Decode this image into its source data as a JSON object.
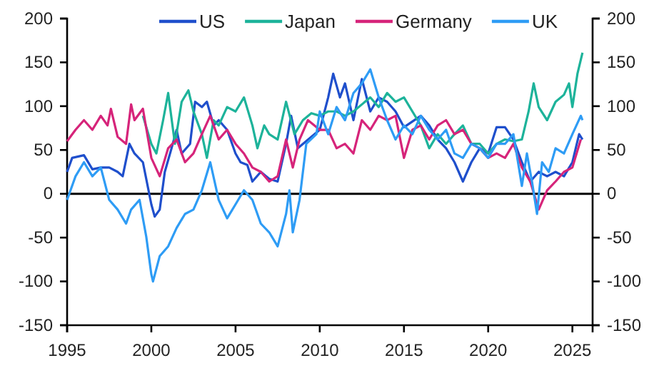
{
  "chart_data": {
    "type": "line",
    "xlim": [
      1995,
      2026.2
    ],
    "xticks": [
      1995,
      2000,
      2005,
      2010,
      2015,
      2020,
      2025
    ],
    "ylim": [
      -150,
      200
    ],
    "yticks": [
      -150,
      -100,
      -50,
      0,
      50,
      100,
      150,
      200
    ],
    "y2lim": [
      -150,
      200
    ],
    "y2ticks": [
      -150,
      -100,
      -50,
      0,
      50,
      100,
      150,
      200
    ],
    "legend": "top",
    "grid": false,
    "line_style": "solid",
    "marker": "none",
    "ref_lines": [
      {
        "axis": "y",
        "value": 0,
        "color": "#000000"
      }
    ],
    "series": [
      {
        "name": "US",
        "color": "#1f4fcc",
        "x": [
          1995,
          1995.3,
          1996,
          1996.5,
          1997,
          1997.5,
          1998,
          1998.3,
          1998.7,
          1999,
          1999.5,
          2000,
          2000.2,
          2000.5,
          2000.8,
          2001.2,
          2001.5,
          2001.8,
          2002.3,
          2002.6,
          2003,
          2003.3,
          2003.7,
          2004,
          2004.5,
          2005,
          2005.3,
          2005.7,
          2006,
          2006.5,
          2007,
          2007.5,
          2008,
          2008.3,
          2008.7,
          2010,
          2010.5,
          2010.8,
          2011.2,
          2011.5,
          2012,
          2012.5,
          2013,
          2013.5,
          2014,
          2014.5,
          2015,
          2016,
          2016.5,
          2017,
          2017.5,
          2018,
          2018.5,
          2019,
          2019.5,
          2020,
          2020.5,
          2021,
          2021.5,
          2022,
          2022.5,
          2023,
          2023.5,
          2024,
          2024.5,
          2025,
          2025.4,
          2025.6
        ],
        "values": [
          25,
          41,
          44,
          28,
          30,
          30,
          25,
          20,
          57,
          46,
          36,
          -12,
          -26,
          -18,
          25,
          52,
          73,
          46,
          57,
          105,
          99,
          105,
          78,
          84,
          73,
          46,
          36,
          33,
          14,
          25,
          17,
          14,
          57,
          89,
          52,
          73,
          110,
          137,
          110,
          126,
          84,
          131,
          94,
          110,
          105,
          94,
          76,
          89,
          78,
          62,
          52,
          36,
          14,
          36,
          52,
          46,
          76,
          76,
          62,
          36,
          14,
          25,
          20,
          25,
          20,
          36,
          68,
          62
        ]
      },
      {
        "name": "Japan",
        "color": "#1db39a",
        "x": [
          1999.5,
          2000,
          2000.3,
          2000.7,
          2001,
          2001.4,
          2001.8,
          2002.2,
          2002.5,
          2003,
          2003.3,
          2003.7,
          2004,
          2004.5,
          2005,
          2005.5,
          2006,
          2006.3,
          2006.7,
          2007,
          2007.5,
          2008,
          2008.5,
          2009,
          2009.5,
          2010,
          2010.5,
          2011,
          2011.5,
          2012,
          2013,
          2013.5,
          2014,
          2014.5,
          2015,
          2015.5,
          2016,
          2016.5,
          2017,
          2017.5,
          2018,
          2018.5,
          2019,
          2019.5,
          2020,
          2020.5,
          2021,
          2021.5,
          2022,
          2022.4,
          2022.7,
          2023,
          2023.5,
          2024,
          2024.5,
          2024.8,
          2025,
          2025.3,
          2025.6
        ],
        "values": [
          89,
          57,
          46,
          84,
          115,
          57,
          105,
          118,
          94,
          68,
          41,
          84,
          78,
          99,
          94,
          110,
          78,
          52,
          78,
          68,
          62,
          105,
          68,
          84,
          92,
          89,
          94,
          94,
          89,
          94,
          110,
          99,
          115,
          105,
          110,
          94,
          78,
          52,
          68,
          57,
          68,
          78,
          57,
          57,
          46,
          57,
          62,
          60,
          62,
          94,
          126,
          99,
          84,
          105,
          113,
          126,
          99,
          137,
          161
        ]
      },
      {
        "name": "Germany",
        "color": "#d6247a",
        "x": [
          1995,
          1995.5,
          1996,
          1996.5,
          1997,
          1997.4,
          1997.6,
          1998,
          1998.5,
          1998.8,
          1999,
          1999.5,
          2000,
          2000.5,
          2001,
          2001.5,
          2002,
          2002.5,
          2003,
          2003.5,
          2004,
          2004.5,
          2005,
          2005.5,
          2006,
          2006.5,
          2007,
          2007.5,
          2008,
          2008.4,
          2008.8,
          2009.3,
          2010,
          2010.5,
          2011,
          2011.5,
          2012,
          2012.5,
          2013,
          2013.5,
          2014,
          2014.5,
          2015,
          2015.5,
          2016,
          2016.5,
          2017,
          2017.5,
          2018,
          2018.5,
          2019,
          2019.5,
          2020,
          2020.5,
          2021,
          2021.5,
          2022,
          2022.5,
          2023,
          2023.5,
          2024,
          2024.5,
          2025,
          2025.5
        ],
        "values": [
          60,
          73,
          84,
          73,
          89,
          78,
          97,
          65,
          57,
          102,
          84,
          97,
          41,
          20,
          52,
          62,
          36,
          46,
          68,
          89,
          62,
          73,
          57,
          46,
          30,
          25,
          14,
          20,
          62,
          30,
          62,
          84,
          73,
          73,
          52,
          57,
          46,
          84,
          73,
          89,
          84,
          89,
          41,
          73,
          78,
          62,
          78,
          84,
          68,
          73,
          57,
          52,
          41,
          46,
          41,
          57,
          30,
          14,
          -18,
          4,
          14,
          25,
          30,
          62
        ]
      },
      {
        "name": "UK",
        "color": "#2e9cf5",
        "x": [
          1995,
          1995.5,
          1996,
          1996.5,
          1997,
          1997.5,
          1998,
          1998.5,
          1998.8,
          1999.3,
          1999.7,
          2000,
          2000.1,
          2000.5,
          2001,
          2001.5,
          2002,
          2002.5,
          2003,
          2003.5,
          2004,
          2004.5,
          2005,
          2005.5,
          2006,
          2006.5,
          2007,
          2007.5,
          2008,
          2008.2,
          2008.4,
          2008.8,
          2009.2,
          2009.8,
          2010,
          2010.5,
          2011,
          2011.5,
          2012,
          2012.5,
          2013,
          2013.5,
          2014,
          2014.5,
          2015,
          2015.5,
          2016,
          2016.5,
          2017,
          2017.5,
          2018,
          2018.5,
          2019,
          2019.5,
          2020,
          2020.5,
          2021,
          2021.5,
          2022,
          2022.3,
          2022.6,
          2022.9,
          2023.2,
          2023.6,
          2024,
          2024.5,
          2025,
          2025.5,
          2025.6
        ],
        "values": [
          -7,
          20,
          36,
          20,
          30,
          -7,
          -18,
          -34,
          -18,
          -7,
          -49,
          -92,
          -100,
          -71,
          -60,
          -39,
          -23,
          -18,
          4,
          36,
          -7,
          -28,
          -12,
          4,
          -7,
          -34,
          -44,
          -60,
          -23,
          4,
          -44,
          -7,
          57,
          68,
          94,
          68,
          99,
          84,
          115,
          126,
          142,
          110,
          84,
          62,
          78,
          68,
          89,
          73,
          62,
          73,
          46,
          41,
          57,
          52,
          41,
          57,
          57,
          68,
          9,
          46,
          14,
          -23,
          36,
          25,
          52,
          46,
          68,
          89,
          84
        ]
      }
    ]
  }
}
